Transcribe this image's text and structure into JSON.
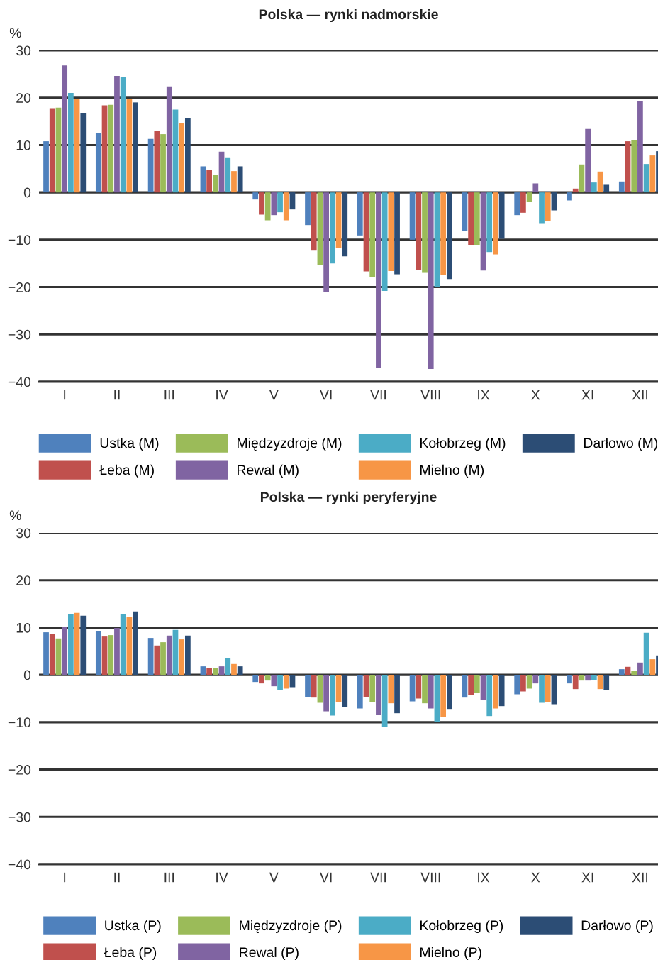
{
  "chart_data": [
    {
      "type": "bar",
      "title": "Polska — rynki nadmorskie",
      "ylabel": "%",
      "categories": [
        "I",
        "II",
        "III",
        "IV",
        "V",
        "VI",
        "VII",
        "VIII",
        "IX",
        "X",
        "XI",
        "XII"
      ],
      "series": [
        {
          "name": "Ustka (M)",
          "color": "#4f81bd",
          "values": [
            10.8,
            12.5,
            11.3,
            5.5,
            -1.5,
            -6.9,
            -9.1,
            -10.0,
            -8.1,
            -4.8,
            -1.7,
            2.3
          ]
        },
        {
          "name": "Łeba (M)",
          "color": "#c0504d",
          "values": [
            17.8,
            18.4,
            13.0,
            4.7,
            -4.7,
            -12.3,
            -16.7,
            -16.3,
            -11.1,
            -4.3,
            0.8,
            10.8
          ]
        },
        {
          "name": "Międzyzdroje (M)",
          "color": "#9bbb59",
          "values": [
            17.9,
            18.5,
            12.3,
            3.7,
            -5.9,
            -15.3,
            -17.8,
            -17.0,
            -11.2,
            -2.0,
            5.9,
            11.1
          ]
        },
        {
          "name": "Rewal (M)",
          "color": "#8064a2",
          "values": [
            26.8,
            24.6,
            22.4,
            8.6,
            -4.8,
            -21.0,
            -37.1,
            -37.3,
            -16.5,
            1.9,
            13.4,
            19.3
          ]
        },
        {
          "name": "Kołobrzeg (M)",
          "color": "#4bacc6",
          "values": [
            21.0,
            24.3,
            17.5,
            7.4,
            -4.2,
            -15.0,
            -20.8,
            -19.9,
            -12.6,
            -6.5,
            2.1,
            6.0
          ]
        },
        {
          "name": "Mielno (M)",
          "color": "#f79646",
          "values": [
            19.7,
            19.7,
            14.7,
            4.5,
            -5.9,
            -11.8,
            -16.6,
            -17.5,
            -13.1,
            -6.0,
            4.4,
            7.8
          ]
        },
        {
          "name": "Darłowo (M)",
          "color": "#2c4d75",
          "values": [
            16.8,
            19.0,
            15.6,
            5.5,
            -3.6,
            -13.5,
            -17.3,
            -18.3,
            -9.8,
            -3.8,
            1.6,
            8.7
          ]
        }
      ],
      "ylim": [
        -40,
        30
      ],
      "yticks": [
        30,
        20,
        10,
        0,
        {
          "value": -10,
          "label": "−10"
        },
        {
          "value": -20,
          "label": "−20"
        },
        {
          "value": -30,
          "label": "−30"
        },
        {
          "value": -40,
          "label": "−40"
        }
      ],
      "grid": "y",
      "legend": "bottom"
    },
    {
      "type": "bar",
      "title": "Polska — rynki peryferyjne",
      "ylabel": "%",
      "categories": [
        "I",
        "II",
        "III",
        "IV",
        "V",
        "VI",
        "VII",
        "VIII",
        "IX",
        "X",
        "XI",
        "XII"
      ],
      "series": [
        {
          "name": "Ustka (P)",
          "color": "#4f81bd",
          "values": [
            9.0,
            9.3,
            7.8,
            1.8,
            -1.5,
            -4.7,
            -7.1,
            -5.6,
            -4.8,
            -4.1,
            -1.8,
            1.2
          ]
        },
        {
          "name": "Łeba (P)",
          "color": "#c0504d",
          "values": [
            8.6,
            8.1,
            6.2,
            1.5,
            -1.8,
            -4.8,
            -4.7,
            -5.0,
            -4.2,
            -3.5,
            -3.0,
            1.7
          ]
        },
        {
          "name": "Międzyzdroje (P)",
          "color": "#9bbb59",
          "values": [
            7.7,
            8.4,
            6.9,
            1.4,
            -1.2,
            -5.9,
            -5.7,
            -6.0,
            -3.8,
            -2.9,
            -1.2,
            0.9
          ]
        },
        {
          "name": "Rewal (P)",
          "color": "#8064a2",
          "values": [
            10.2,
            9.9,
            8.3,
            1.8,
            -2.4,
            -7.7,
            -8.4,
            -7.1,
            -5.3,
            -1.8,
            -1.2,
            2.6
          ]
        },
        {
          "name": "Kołobrzeg (P)",
          "color": "#4bacc6",
          "values": [
            12.9,
            12.9,
            9.5,
            3.6,
            -3.2,
            -8.6,
            -11.0,
            -9.9,
            -8.7,
            -5.9,
            -1.1,
            8.9
          ]
        },
        {
          "name": "Mielno (P)",
          "color": "#f79646",
          "values": [
            13.1,
            12.2,
            7.5,
            2.3,
            -2.9,
            -5.7,
            -6.0,
            -8.9,
            -7.1,
            -5.7,
            -3.0,
            3.3
          ]
        },
        {
          "name": "Darłowo (P)",
          "color": "#2c4d75",
          "values": [
            12.5,
            13.4,
            8.3,
            1.8,
            -2.6,
            -6.8,
            -8.1,
            -7.2,
            -6.6,
            -6.2,
            -3.2,
            4.1
          ]
        }
      ],
      "ylim": [
        -40,
        30
      ],
      "yticks": [
        30,
        20,
        10,
        0,
        {
          "value": -10,
          "label": "−10"
        },
        {
          "value": -20,
          "label": "−20"
        },
        {
          "value": -30,
          "label": "−30"
        },
        {
          "value": -40,
          "label": "−40"
        }
      ],
      "grid": "y",
      "legend": "bottom"
    }
  ]
}
